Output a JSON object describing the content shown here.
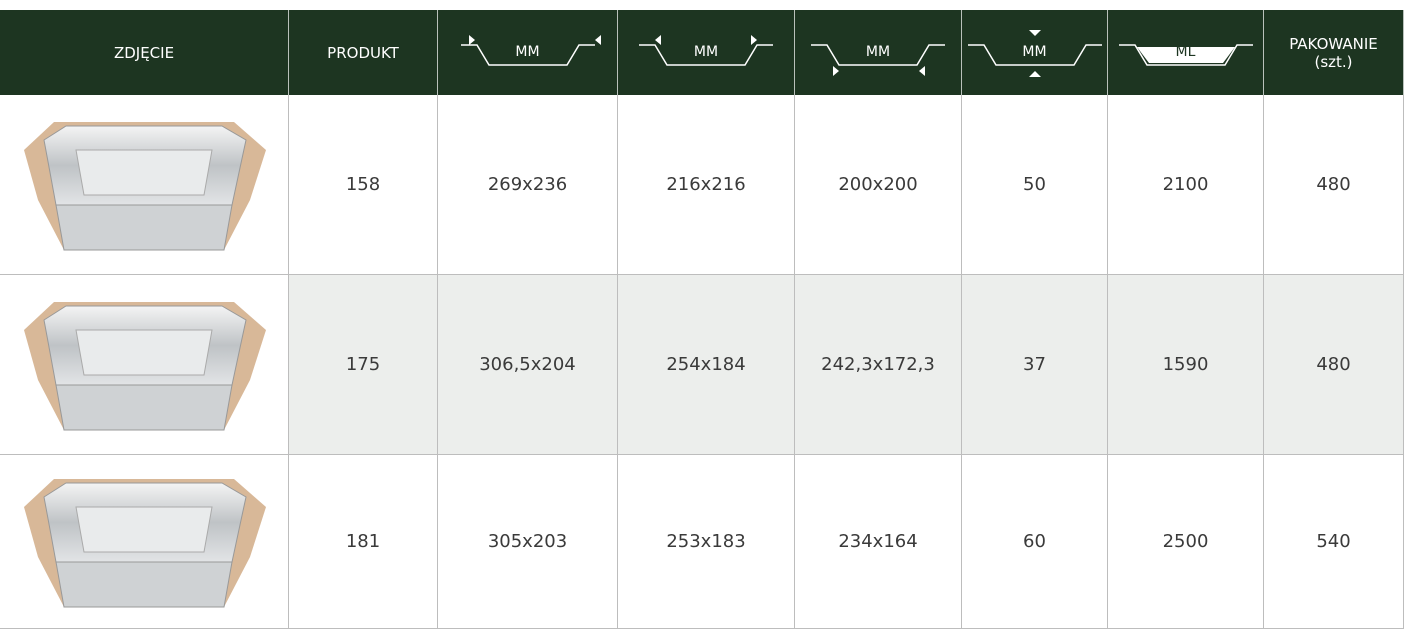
{
  "table": {
    "columns": [
      {
        "label": "ZDJĘCIE"
      },
      {
        "label": "PRODUKT"
      },
      {
        "label": "MM"
      },
      {
        "label": "MM"
      },
      {
        "label": "MM"
      },
      {
        "label": "MM"
      },
      {
        "label": "ML"
      },
      {
        "label": "PAKOWANIE",
        "sublabel": "(szt.)"
      }
    ],
    "rows": [
      [
        "158",
        "269x236",
        "216x216",
        "200x200",
        "50",
        "2100",
        "480"
      ],
      [
        "175",
        "306,5x204",
        "254x184",
        "242,3x172,3",
        "37",
        "1590",
        "480"
      ],
      [
        "181",
        "305x203",
        "253x183",
        "234x164",
        "60",
        "2500",
        "540"
      ]
    ]
  }
}
